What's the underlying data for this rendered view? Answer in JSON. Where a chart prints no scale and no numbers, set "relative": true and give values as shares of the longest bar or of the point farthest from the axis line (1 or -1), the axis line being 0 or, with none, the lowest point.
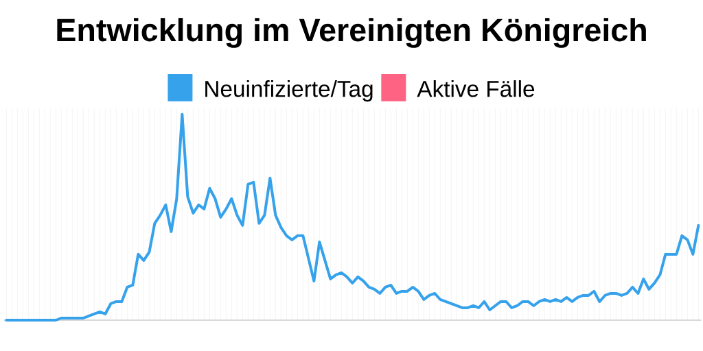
{
  "chart_data": {
    "type": "line",
    "title": "Entwicklung im Vereinigten Königreich",
    "relative": true,
    "grid": true,
    "legend": "top",
    "categories": [
      null,
      null,
      null,
      null,
      null,
      null,
      null,
      null,
      null,
      null,
      null,
      null,
      null,
      null,
      null,
      null,
      null,
      null,
      null,
      null,
      null,
      null,
      null,
      null,
      null,
      null,
      null,
      null,
      null,
      null,
      null,
      null,
      null,
      null,
      null,
      null,
      null,
      null,
      null,
      null,
      null,
      null,
      null,
      null,
      null,
      null,
      null,
      null,
      null,
      null,
      null,
      null,
      null,
      null,
      null,
      null,
      null,
      null,
      null,
      null,
      null,
      null,
      null,
      null,
      null,
      null,
      null,
      null,
      null,
      null,
      null,
      null,
      null,
      null,
      null,
      null,
      null,
      null,
      null,
      null,
      null,
      null,
      null,
      null,
      null,
      null,
      null,
      null,
      null,
      null,
      null,
      null,
      null,
      null,
      null,
      null,
      null,
      null,
      null,
      null,
      null,
      null,
      null,
      null,
      null,
      null,
      null,
      null,
      null,
      null,
      null,
      null,
      null,
      null,
      null,
      null,
      null,
      null,
      null,
      null,
      null,
      null,
      null,
      null,
      null,
      null,
      null
    ],
    "series": [
      {
        "name": "Neuinfizierte/Tag",
        "color": "#36a2eb",
        "values": [
          0,
          0,
          0,
          0,
          0,
          0,
          0,
          0,
          0,
          0,
          0.01,
          0.01,
          0.01,
          0.01,
          0.01,
          0.02,
          0.03,
          0.04,
          0.03,
          0.08,
          0.09,
          0.09,
          0.16,
          0.17,
          0.32,
          0.29,
          0.33,
          0.47,
          0.51,
          0.56,
          0.43,
          0.59,
          1,
          0.6,
          0.52,
          0.56,
          0.54,
          0.64,
          0.59,
          0.5,
          0.54,
          0.59,
          0.51,
          0.46,
          0.66,
          0.67,
          0.47,
          0.51,
          0.69,
          0.51,
          0.45,
          0.41,
          0.39,
          0.41,
          0.41,
          0.3,
          0.19,
          0.38,
          0.29,
          0.2,
          0.22,
          0.23,
          0.21,
          0.18,
          0.21,
          0.19,
          0.16,
          0.15,
          0.13,
          0.16,
          0.17,
          0.13,
          0.14,
          0.14,
          0.16,
          0.14,
          0.1,
          0.12,
          0.13,
          0.1,
          0.09,
          0.08,
          0.07,
          0.06,
          0.06,
          0.07,
          0.06,
          0.09,
          0.05,
          0.07,
          0.09,
          0.09,
          0.06,
          0.07,
          0.09,
          0.09,
          0.07,
          0.09,
          0.1,
          0.09,
          0.1,
          0.09,
          0.11,
          0.09,
          0.11,
          0.12,
          0.12,
          0.14,
          0.09,
          0.12,
          0.13,
          0.13,
          0.12,
          0.13,
          0.16,
          0.13,
          0.2,
          0.15,
          0.18,
          0.22,
          0.32,
          0.32,
          0.32,
          0.41,
          0.39,
          0.32,
          0.46
        ]
      },
      {
        "name": "Aktive Fälle",
        "color": "#ff6384",
        "values": [
          null,
          null,
          null,
          null,
          null,
          null,
          null,
          null,
          null,
          null,
          null,
          null,
          null,
          null,
          null,
          null,
          null,
          null,
          null,
          null,
          null,
          null,
          null,
          null,
          null,
          null,
          null,
          null,
          null,
          null,
          null,
          null,
          null,
          null,
          null,
          null,
          null,
          null,
          null,
          null,
          null,
          null,
          null,
          null,
          null,
          null,
          null,
          null,
          null,
          null,
          null,
          null,
          null,
          null,
          null,
          null,
          null,
          null,
          null,
          null,
          null,
          null,
          null,
          null,
          null,
          null,
          null,
          null,
          null,
          null,
          null,
          null,
          null,
          null,
          null,
          null,
          null,
          null,
          null,
          null,
          null,
          null,
          null,
          null,
          null,
          null,
          null,
          null,
          null,
          null,
          null,
          null,
          null,
          null,
          null,
          null,
          null,
          null,
          null,
          null,
          null,
          null,
          null,
          null,
          null,
          null,
          null,
          null,
          null,
          null,
          null,
          null,
          null,
          null,
          null,
          null,
          null,
          null,
          null,
          null,
          null,
          null,
          null,
          null,
          null,
          null,
          null
        ]
      }
    ]
  }
}
